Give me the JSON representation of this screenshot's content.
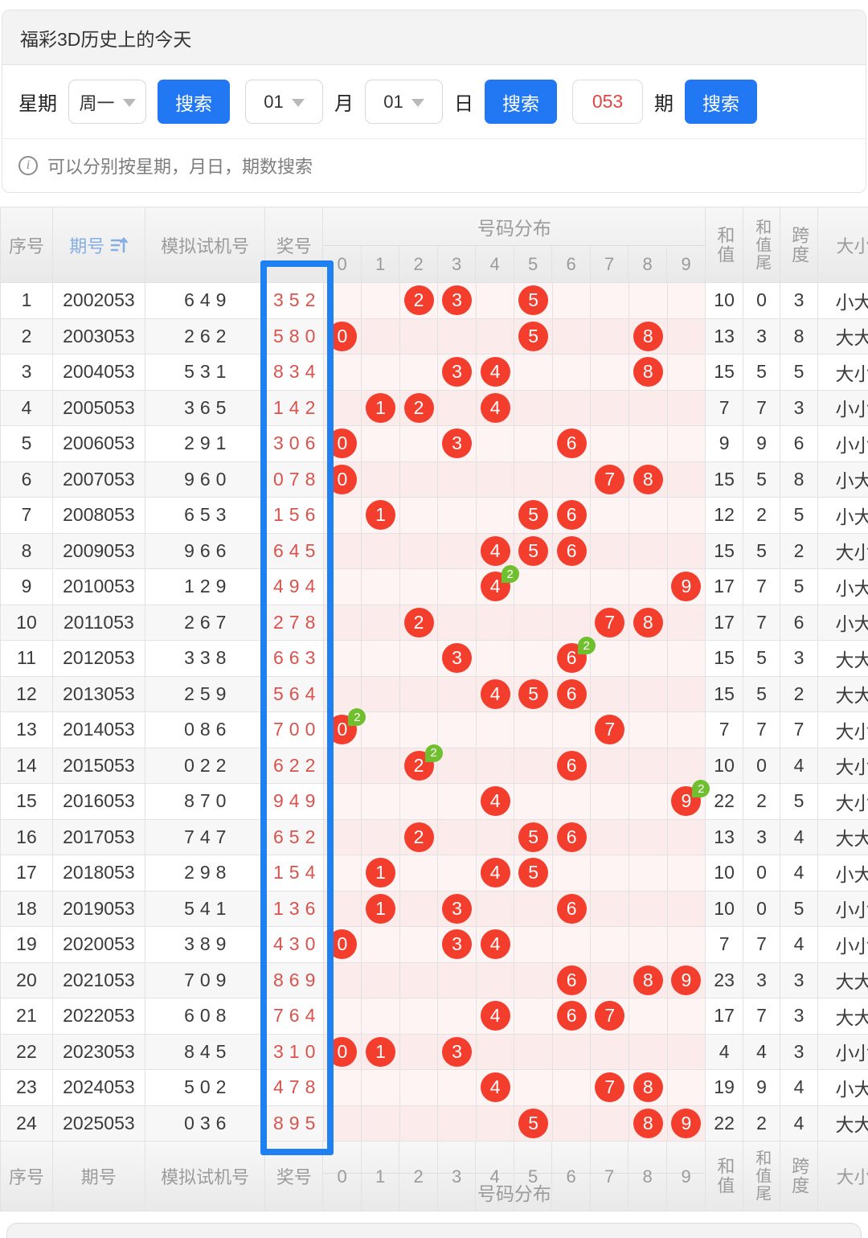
{
  "title": "福彩3D历史上的今天",
  "search": {
    "week_label": "星期",
    "week_value": "周一",
    "button_label": "搜索",
    "month_value": "01",
    "month_label": "月",
    "day_value": "01",
    "day_label": "日",
    "issue_value": "053",
    "issue_label": "期"
  },
  "info_text": "可以分别按星期，月日，期数搜索",
  "colors": {
    "accent_blue": "#2277f2",
    "highlight_rect_blue": "#1f80f2",
    "ball_red": "#f33d2d",
    "badge_green": "#70bf2e",
    "prize_red": "#d9534f",
    "issue_header_blue": "#85aee3"
  },
  "table": {
    "headers": {
      "seq": "序号",
      "issue": "期号",
      "test": "模拟试机号",
      "prize": "奖号",
      "dist": "号码分布",
      "sum": "和值",
      "sum_tail": "和值尾",
      "span": "跨度",
      "size": "大小"
    },
    "digits": [
      "0",
      "1",
      "2",
      "3",
      "4",
      "5",
      "6",
      "7",
      "8",
      "9"
    ],
    "double_badge_text": "2",
    "rows": [
      {
        "seq": "1",
        "issue": "2002053",
        "test": "649",
        "prize": "352",
        "balls": [
          2,
          3,
          5
        ],
        "doubles": [],
        "sum": "10",
        "sum_tail": "0",
        "span": "3",
        "size": "小大"
      },
      {
        "seq": "2",
        "issue": "2003053",
        "test": "262",
        "prize": "580",
        "balls": [
          0,
          5,
          8
        ],
        "doubles": [],
        "sum": "13",
        "sum_tail": "3",
        "span": "8",
        "size": "大大"
      },
      {
        "seq": "3",
        "issue": "2004053",
        "test": "531",
        "prize": "834",
        "balls": [
          3,
          4,
          8
        ],
        "doubles": [],
        "sum": "15",
        "sum_tail": "5",
        "span": "5",
        "size": "大小"
      },
      {
        "seq": "4",
        "issue": "2005053",
        "test": "365",
        "prize": "142",
        "balls": [
          1,
          2,
          4
        ],
        "doubles": [],
        "sum": "7",
        "sum_tail": "7",
        "span": "3",
        "size": "小小"
      },
      {
        "seq": "5",
        "issue": "2006053",
        "test": "291",
        "prize": "306",
        "balls": [
          0,
          3,
          6
        ],
        "doubles": [],
        "sum": "9",
        "sum_tail": "9",
        "span": "6",
        "size": "小小"
      },
      {
        "seq": "6",
        "issue": "2007053",
        "test": "960",
        "prize": "078",
        "balls": [
          0,
          7,
          8
        ],
        "doubles": [],
        "sum": "15",
        "sum_tail": "5",
        "span": "8",
        "size": "小大"
      },
      {
        "seq": "7",
        "issue": "2008053",
        "test": "653",
        "prize": "156",
        "balls": [
          1,
          5,
          6
        ],
        "doubles": [],
        "sum": "12",
        "sum_tail": "2",
        "span": "5",
        "size": "小大"
      },
      {
        "seq": "8",
        "issue": "2009053",
        "test": "966",
        "prize": "645",
        "balls": [
          4,
          5,
          6
        ],
        "doubles": [],
        "sum": "15",
        "sum_tail": "5",
        "span": "2",
        "size": "大小"
      },
      {
        "seq": "9",
        "issue": "2010053",
        "test": "129",
        "prize": "494",
        "balls": [
          4,
          9
        ],
        "doubles": [
          4
        ],
        "sum": "17",
        "sum_tail": "7",
        "span": "5",
        "size": "小大"
      },
      {
        "seq": "10",
        "issue": "2011053",
        "test": "267",
        "prize": "278",
        "balls": [
          2,
          7,
          8
        ],
        "doubles": [],
        "sum": "17",
        "sum_tail": "7",
        "span": "6",
        "size": "小大"
      },
      {
        "seq": "11",
        "issue": "2012053",
        "test": "338",
        "prize": "663",
        "balls": [
          3,
          6
        ],
        "doubles": [
          6
        ],
        "sum": "15",
        "sum_tail": "5",
        "span": "3",
        "size": "大大"
      },
      {
        "seq": "12",
        "issue": "2013053",
        "test": "259",
        "prize": "564",
        "balls": [
          4,
          5,
          6
        ],
        "doubles": [],
        "sum": "15",
        "sum_tail": "5",
        "span": "2",
        "size": "大大"
      },
      {
        "seq": "13",
        "issue": "2014053",
        "test": "086",
        "prize": "700",
        "balls": [
          0,
          7
        ],
        "doubles": [
          0
        ],
        "sum": "7",
        "sum_tail": "7",
        "span": "7",
        "size": "大小"
      },
      {
        "seq": "14",
        "issue": "2015053",
        "test": "022",
        "prize": "622",
        "balls": [
          2,
          6
        ],
        "doubles": [
          2
        ],
        "sum": "10",
        "sum_tail": "0",
        "span": "4",
        "size": "大小"
      },
      {
        "seq": "15",
        "issue": "2016053",
        "test": "870",
        "prize": "949",
        "balls": [
          4,
          9
        ],
        "doubles": [
          9
        ],
        "sum": "22",
        "sum_tail": "2",
        "span": "5",
        "size": "大小"
      },
      {
        "seq": "16",
        "issue": "2017053",
        "test": "747",
        "prize": "652",
        "balls": [
          2,
          5,
          6
        ],
        "doubles": [],
        "sum": "13",
        "sum_tail": "3",
        "span": "4",
        "size": "大大"
      },
      {
        "seq": "17",
        "issue": "2018053",
        "test": "298",
        "prize": "154",
        "balls": [
          1,
          4,
          5
        ],
        "doubles": [],
        "sum": "10",
        "sum_tail": "0",
        "span": "4",
        "size": "小大"
      },
      {
        "seq": "18",
        "issue": "2019053",
        "test": "541",
        "prize": "136",
        "balls": [
          1,
          3,
          6
        ],
        "doubles": [],
        "sum": "10",
        "sum_tail": "0",
        "span": "5",
        "size": "小小"
      },
      {
        "seq": "19",
        "issue": "2020053",
        "test": "389",
        "prize": "430",
        "balls": [
          0,
          3,
          4
        ],
        "doubles": [],
        "sum": "7",
        "sum_tail": "7",
        "span": "4",
        "size": "小小"
      },
      {
        "seq": "20",
        "issue": "2021053",
        "test": "709",
        "prize": "869",
        "balls": [
          6,
          8,
          9
        ],
        "doubles": [],
        "sum": "23",
        "sum_tail": "3",
        "span": "3",
        "size": "大大"
      },
      {
        "seq": "21",
        "issue": "2022053",
        "test": "608",
        "prize": "764",
        "balls": [
          4,
          6,
          7
        ],
        "doubles": [],
        "sum": "17",
        "sum_tail": "7",
        "span": "3",
        "size": "大大"
      },
      {
        "seq": "22",
        "issue": "2023053",
        "test": "845",
        "prize": "310",
        "balls": [
          0,
          1,
          3
        ],
        "doubles": [],
        "sum": "4",
        "sum_tail": "4",
        "span": "3",
        "size": "小小"
      },
      {
        "seq": "23",
        "issue": "2024053",
        "test": "502",
        "prize": "478",
        "balls": [
          4,
          7,
          8
        ],
        "doubles": [],
        "sum": "19",
        "sum_tail": "9",
        "span": "4",
        "size": "小大"
      },
      {
        "seq": "24",
        "issue": "2025053",
        "test": "036",
        "prize": "895",
        "balls": [
          5,
          8,
          9
        ],
        "doubles": [],
        "sum": "22",
        "sum_tail": "2",
        "span": "4",
        "size": "大大"
      }
    ]
  }
}
